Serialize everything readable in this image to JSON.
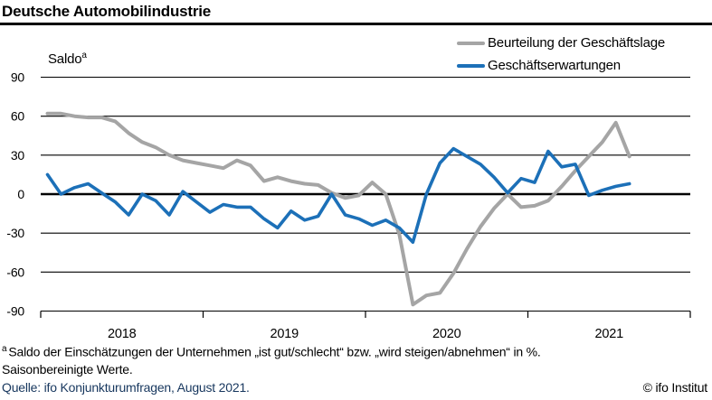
{
  "title": "Deutsche Automobilindustrie",
  "y_axis_label": "Saldo",
  "y_axis_label_sup": "a",
  "legend": [
    {
      "label": "Beurteilung der Geschäftslage",
      "color": "#a5a5a5"
    },
    {
      "label": "Geschäftserwartungen",
      "color": "#1c70b8"
    }
  ],
  "colors": {
    "lage_line": "#a5a5a5",
    "erwartungen_line": "#1c70b8",
    "gridline": "#000000",
    "source_text": "#17375e"
  },
  "chart_data": {
    "type": "line",
    "title": "Deutsche Automobilindustrie",
    "ylabel": "Saldo",
    "ylim": [
      -90,
      90
    ],
    "y_ticks": [
      90,
      60,
      30,
      0,
      -30,
      -60,
      -90
    ],
    "x_tick_labels": [
      "2018",
      "2019",
      "2020",
      "2021"
    ],
    "x_range": [
      "Jan 2018",
      "Aug 2021"
    ],
    "grid": "horizontal",
    "legend_position": "top-right",
    "months": [
      "2018-01",
      "2018-02",
      "2018-03",
      "2018-04",
      "2018-05",
      "2018-06",
      "2018-07",
      "2018-08",
      "2018-09",
      "2018-10",
      "2018-11",
      "2018-12",
      "2019-01",
      "2019-02",
      "2019-03",
      "2019-04",
      "2019-05",
      "2019-06",
      "2019-07",
      "2019-08",
      "2019-09",
      "2019-10",
      "2019-11",
      "2019-12",
      "2020-01",
      "2020-02",
      "2020-03",
      "2020-04",
      "2020-05",
      "2020-06",
      "2020-07",
      "2020-08",
      "2020-09",
      "2020-10",
      "2020-11",
      "2020-12",
      "2021-01",
      "2021-02",
      "2021-03",
      "2021-04",
      "2021-05",
      "2021-06",
      "2021-07",
      "2021-08"
    ],
    "series": [
      {
        "name": "Beurteilung der Geschäftslage",
        "color": "#a5a5a5",
        "values": [
          62,
          62,
          60,
          59,
          59,
          56,
          47,
          40,
          36,
          30,
          26,
          24,
          22,
          20,
          26,
          22,
          10,
          13,
          10,
          8,
          7,
          1,
          -3,
          -1,
          9,
          0,
          -31,
          -85,
          -78,
          -76,
          -61,
          -42,
          -25,
          -11,
          0,
          -10,
          -9,
          -5,
          6,
          18,
          29,
          40,
          55,
          29
        ]
      },
      {
        "name": "Geschäftserwartungen",
        "color": "#1c70b8",
        "values": [
          15,
          0,
          5,
          8,
          1,
          -6,
          -16,
          0,
          -5,
          -16,
          2,
          -6,
          -14,
          -8,
          -10,
          -10,
          -19,
          -26,
          -13,
          -20,
          -17,
          0,
          -16,
          -19,
          -24,
          -20,
          -26,
          -37,
          0,
          24,
          35,
          29,
          23,
          13,
          1,
          12,
          9,
          33,
          21,
          23,
          -1,
          3,
          6,
          8
        ]
      }
    ]
  },
  "footnote_sup": "a",
  "footnote_line1": "Saldo der Einschätzungen der Unternehmen „ist gut/schlecht“ bzw. „wird steigen/abnehmen“ in %.",
  "footnote_line2": "Saisonbereinigte Werte.",
  "source": "Quelle: ifo Konjunkturumfragen, August 2021.",
  "copyright": "© ifo Institut"
}
